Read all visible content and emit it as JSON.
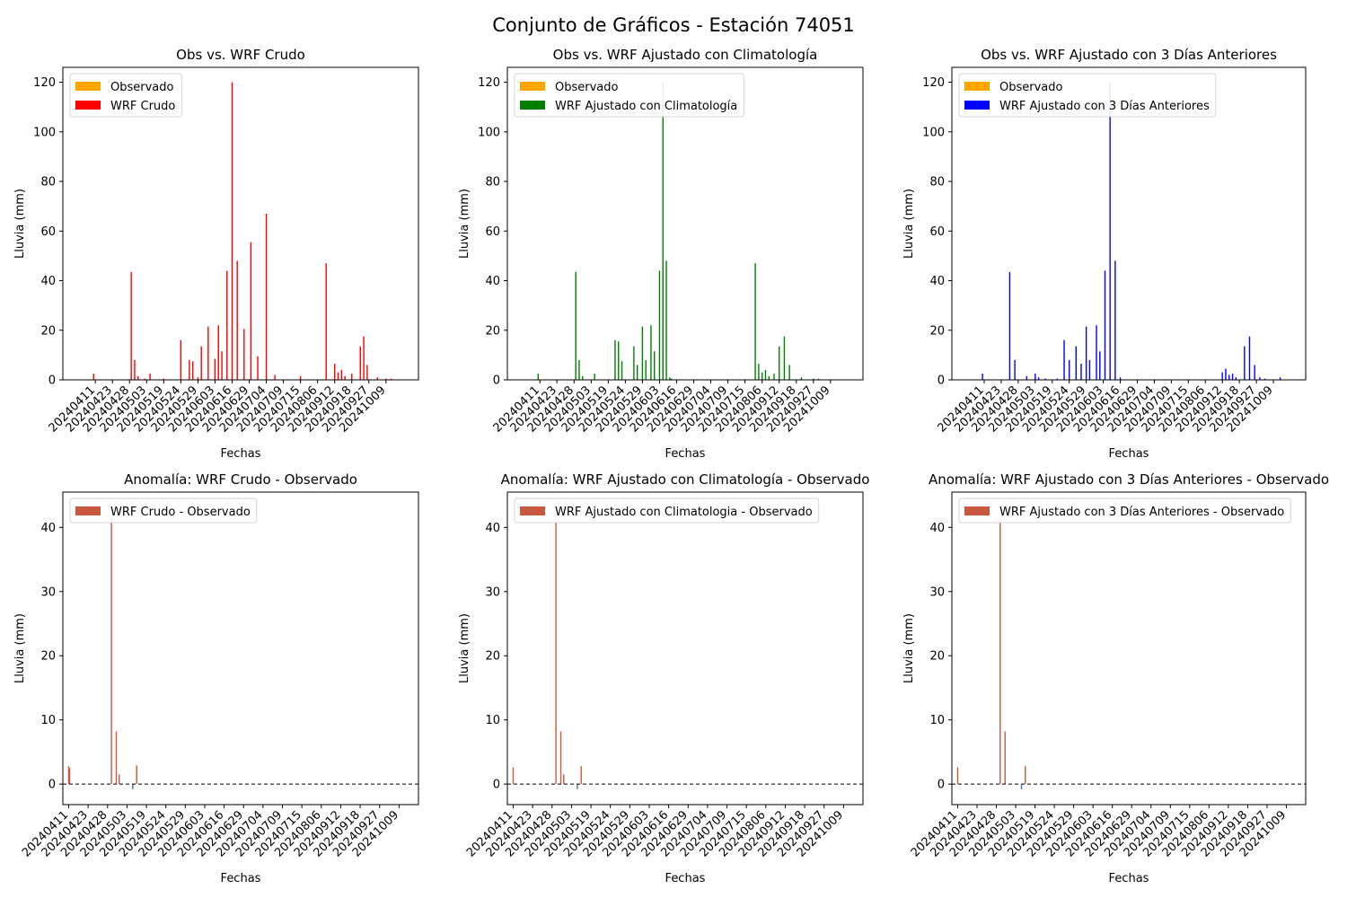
{
  "figure": {
    "suptitle": "Conjunto de Gráficos - Estación 74051"
  },
  "colors": {
    "observado": "#FFA500",
    "wrf_crudo": "#FF0000",
    "wrf_clima": "#008000",
    "wrf_3dias": "#0000FF",
    "anomalia": "#C8593F",
    "anomalia_neg": "#4A72B0"
  },
  "chart_data": [
    {
      "type": "bar",
      "panel": "top-left",
      "title": "Obs vs. WRF Crudo",
      "xlabel": "Fechas",
      "ylabel": "Lluvia (mm)",
      "ylim": [
        0,
        126
      ],
      "yticks": [
        0,
        20,
        40,
        60,
        80,
        100,
        120
      ],
      "xticks": [
        "20240411",
        "20240423",
        "20240428",
        "20240503",
        "20240519",
        "20240524",
        "20240529",
        "20240603",
        "20240616",
        "20240629",
        "20240704",
        "20240709",
        "20240715",
        "20240806",
        "20240912",
        "20240918",
        "20240927",
        "20241009"
      ],
      "legend": "upper-left",
      "series": [
        {
          "name": "Observado",
          "color_key": "observado",
          "x": [],
          "values": []
        },
        {
          "name": "WRF Crudo",
          "color_key": "wrf_crudo",
          "x": [
            0.9,
            3.1,
            3.3,
            3.5,
            3.9,
            4.2,
            5.0,
            6.0,
            6.5,
            6.7,
            7.0,
            7.2,
            7.6,
            8.0,
            8.2,
            8.4,
            8.7,
            9.0,
            9.3,
            9.7,
            10.1,
            10.5,
            11.0,
            11.5,
            13.0,
            14.5,
            15.0,
            15.2,
            15.4,
            15.6,
            16.0,
            16.5,
            16.7,
            16.9,
            17.5,
            18.0,
            18.3
          ],
          "values": [
            2.5,
            43.5,
            8,
            1.5,
            0.5,
            2.5,
            0.5,
            16,
            8,
            7.5,
            1,
            13.5,
            21.5,
            8.5,
            22,
            11.5,
            44,
            120,
            48,
            20.5,
            55.5,
            9.5,
            67,
            2,
            1.5,
            47,
            6.5,
            3,
            4,
            1.5,
            2.5,
            13.5,
            17.5,
            6,
            1,
            0.5,
            0.5
          ]
        }
      ]
    },
    {
      "type": "bar",
      "panel": "top-center",
      "title": "Obs vs. WRF Ajustado con Climatología",
      "xlabel": "Fechas",
      "ylabel": "Lluvia (mm)",
      "ylim": [
        0,
        126
      ],
      "yticks": [
        0,
        20,
        40,
        60,
        80,
        100,
        120
      ],
      "xticks": [
        "20240411",
        "20240423",
        "20240428",
        "20240503",
        "20240519",
        "20240524",
        "20240529",
        "20240603",
        "20240616",
        "20240629",
        "20240704",
        "20240709",
        "20240715",
        "20240806",
        "20240912",
        "20240918",
        "20240927",
        "20241009"
      ],
      "legend": "upper-left",
      "series": [
        {
          "name": "Observado",
          "color_key": "observado",
          "x": [],
          "values": []
        },
        {
          "name": "WRF Ajustado con Climatología",
          "color_key": "wrf_clima",
          "x": [
            0.9,
            3.1,
            3.3,
            3.5,
            4.2,
            5.4,
            5.6,
            5.8,
            6.5,
            6.7,
            7.0,
            7.2,
            7.5,
            7.7,
            8.0,
            8.2,
            8.4,
            8.6,
            8.7,
            13.6,
            13.8,
            14.0,
            14.2,
            14.4,
            14.7,
            15.0,
            15.3,
            15.6,
            16.3,
            17.0,
            17.3
          ],
          "values": [
            2.5,
            43.5,
            8,
            1.5,
            2.5,
            16,
            15.5,
            7.5,
            13.5,
            6,
            21.5,
            8,
            22,
            11.5,
            44,
            120,
            48,
            1,
            0.5,
            47,
            6.5,
            3,
            4,
            1.5,
            2.5,
            13.5,
            17.5,
            6,
            1,
            0.5,
            0.5
          ]
        }
      ]
    },
    {
      "type": "bar",
      "panel": "top-right",
      "title": "Obs vs. WRF Ajustado con 3 Días Anteriores",
      "xlabel": "Fechas",
      "ylabel": "Lluvia (mm)",
      "ylim": [
        0,
        126
      ],
      "yticks": [
        0,
        20,
        40,
        60,
        80,
        100,
        120
      ],
      "xticks": [
        "20240411",
        "20240423",
        "20240428",
        "20240503",
        "20240519",
        "20240524",
        "20240529",
        "20240603",
        "20240616",
        "20240629",
        "20240704",
        "20240709",
        "20240715",
        "20240806",
        "20240912",
        "20240918",
        "20240927",
        "20241009"
      ],
      "legend": "upper-left",
      "series": [
        {
          "name": "Observado",
          "color_key": "observado",
          "x": [],
          "values": []
        },
        {
          "name": "WRF Ajustado con 3 Días Anteriores",
          "color_key": "wrf_3dias",
          "x": [
            0.9,
            2.5,
            2.8,
            3.5,
            4.0,
            4.2,
            4.6,
            5.3,
            5.7,
            6.0,
            6.4,
            6.7,
            7.0,
            7.2,
            7.6,
            7.8,
            8.1,
            8.4,
            8.7,
            9.0,
            15.0,
            15.2,
            15.4,
            15.6,
            15.8,
            16.3,
            16.6,
            16.9,
            17.2,
            17.5,
            18.4
          ],
          "values": [
            2.5,
            43.5,
            8,
            1.5,
            2.5,
            1,
            0.5,
            0.5,
            16,
            8,
            13.5,
            6.5,
            21.5,
            8,
            22,
            11.5,
            44,
            120,
            48,
            1,
            3,
            4.5,
            2,
            2.5,
            1,
            13.5,
            17.5,
            6,
            1,
            0.5,
            1
          ]
        }
      ]
    },
    {
      "type": "bar",
      "panel": "bottom-left",
      "title": "Anomalía: WRF Crudo - Observado",
      "xlabel": "Fechas",
      "ylabel": "Lluvia (mm)",
      "ylim": [
        -3.2,
        45.5
      ],
      "yticks": [
        0,
        10,
        20,
        30,
        40
      ],
      "zero_line": true,
      "xticks": [
        "20240411",
        "20240423",
        "20240428",
        "20240503",
        "20240519",
        "20240524",
        "20240529",
        "20240603",
        "20240616",
        "20240629",
        "20240704",
        "20240709",
        "20240715",
        "20240806",
        "20240912",
        "20240918",
        "20240927",
        "20241009"
      ],
      "legend": "upper-left",
      "series": [
        {
          "name": "WRF Crudo - Observado",
          "color_key": "anomalia",
          "x": [
            0.0,
            0.05,
            2.2,
            2.45,
            2.6,
            3.3,
            3.5
          ],
          "values": [
            2.8,
            2.5,
            41.5,
            8.2,
            1.5,
            -0.8,
            2.9
          ]
        }
      ]
    },
    {
      "type": "bar",
      "panel": "bottom-center",
      "title": "Anomalía: WRF Ajustado con Climatología - Observado",
      "xlabel": "Fechas",
      "ylabel": "Lluvia (mm)",
      "ylim": [
        -3.2,
        45.5
      ],
      "yticks": [
        0,
        10,
        20,
        30,
        40
      ],
      "zero_line": true,
      "xticks": [
        "20240411",
        "20240423",
        "20240428",
        "20240503",
        "20240519",
        "20240524",
        "20240529",
        "20240603",
        "20240616",
        "20240629",
        "20240704",
        "20240709",
        "20240715",
        "20240806",
        "20240912",
        "20240918",
        "20240927",
        "20241009"
      ],
      "legend": "upper-left",
      "series": [
        {
          "name": "WRF Ajustado con Climatologia - Observado",
          "color_key": "anomalia",
          "x": [
            0.0,
            2.2,
            2.45,
            2.6,
            3.3,
            3.5
          ],
          "values": [
            2.6,
            41.5,
            8.2,
            1.5,
            -0.8,
            2.8
          ]
        }
      ]
    },
    {
      "type": "bar",
      "panel": "bottom-right",
      "title": "Anomalía: WRF Ajustado con 3 Días Anteriores - Observado",
      "xlabel": "Fechas",
      "ylabel": "Lluvia (mm)",
      "ylim": [
        -3.2,
        45.5
      ],
      "yticks": [
        0,
        10,
        20,
        30,
        40
      ],
      "zero_line": true,
      "xticks": [
        "20240411",
        "20240423",
        "20240428",
        "20240503",
        "20240519",
        "20240524",
        "20240529",
        "20240603",
        "20240616",
        "20240629",
        "20240704",
        "20240709",
        "20240715",
        "20240806",
        "20240912",
        "20240918",
        "20240927",
        "20241009"
      ],
      "legend": "upper-left",
      "series": [
        {
          "name": "WRF Ajustado con 3 Días Anteriores - Observado",
          "color_key": "anomalia",
          "x": [
            0.0,
            2.2,
            2.45,
            3.3,
            3.5
          ],
          "values": [
            2.6,
            41.5,
            8.2,
            -0.8,
            2.8
          ]
        }
      ]
    }
  ]
}
